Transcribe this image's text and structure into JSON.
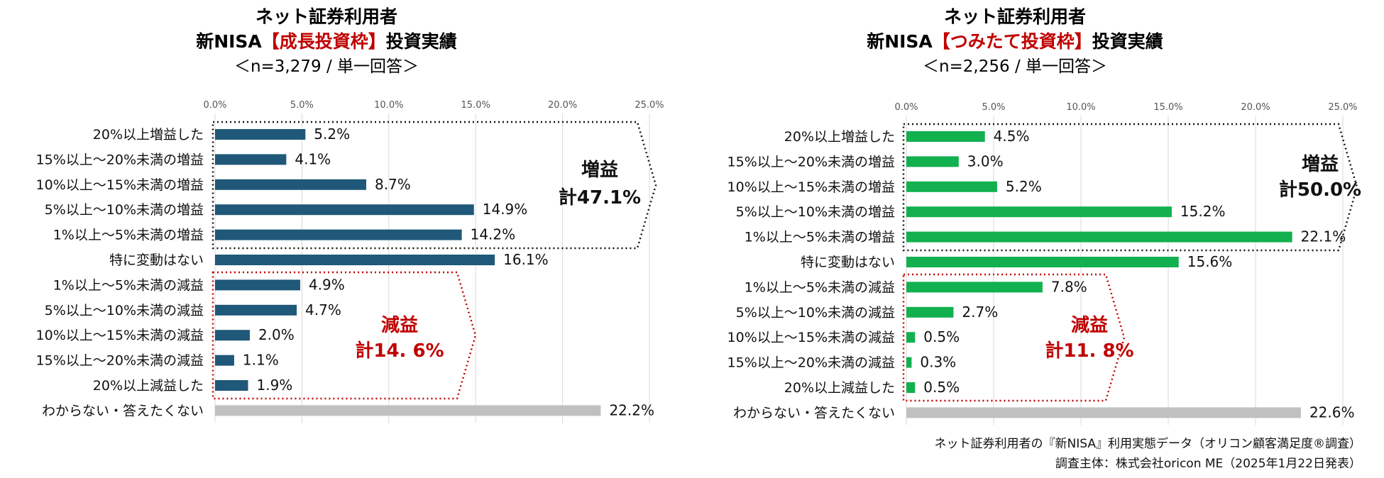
{
  "chart_data": [
    {
      "type": "bar",
      "orientation": "horizontal",
      "title_line1": "ネット証券利用者",
      "title_line2_prefix": "新NISA",
      "title_line2_highlight": "【成長投資枠】",
      "title_line2_suffix": "投資実績",
      "title_line3": "＜n=3,279 / 単一回答＞",
      "xlim": [
        0,
        25
      ],
      "ticks": [
        "0.0%",
        "5.0%",
        "10.0%",
        "15.0%",
        "20.0%",
        "25.0%"
      ],
      "grid": true,
      "bar_color": "#1f5878",
      "other_color": "#c0c0c0",
      "categories": [
        "20%以上増益した",
        "15%以上～20%未満の増益",
        "10%以上～15%未満の増益",
        "5%以上～10%未満の増益",
        "1%以上～5%未満の増益",
        "特に変動はない",
        "1%以上～5%未満の減益",
        "5%以上～10%未満の減益",
        "10%以上～15%未満の減益",
        "15%以上～20%未満の減益",
        "20%以上減益した",
        "わからない・答えたくない"
      ],
      "values": [
        5.2,
        4.1,
        8.7,
        14.9,
        14.2,
        16.1,
        4.9,
        4.7,
        2.0,
        1.1,
        1.9,
        22.2
      ],
      "value_labels": [
        "5.2%",
        "4.1%",
        "8.7%",
        "14.9%",
        "14.2%",
        "16.1%",
        "4.9%",
        "4.7%",
        "2.0%",
        "1.1%",
        "1.9%",
        "22.2%"
      ],
      "gain_label": "増益",
      "gain_total": "計47.1%",
      "loss_label": "減益",
      "loss_total": "計14. 6%"
    },
    {
      "type": "bar",
      "orientation": "horizontal",
      "title_line1": "ネット証券利用者",
      "title_line2_prefix": "新NISA",
      "title_line2_highlight": "【つみたて投資枠】",
      "title_line2_suffix": "投資実績",
      "title_line3": "＜n=2,256 / 単一回答＞",
      "xlim": [
        0,
        25
      ],
      "ticks": [
        "0.0%",
        "5.0%",
        "10.0%",
        "15.0%",
        "20.0%",
        "25.0%"
      ],
      "grid": true,
      "bar_color": "#12b04f",
      "other_color": "#c0c0c0",
      "categories": [
        "20%以上増益した",
        "15%以上～20%未満の増益",
        "10%以上～15%未満の増益",
        "5%以上～10%未満の増益",
        "1%以上～5%未満の増益",
        "特に変動はない",
        "1%以上～5%未満の減益",
        "5%以上～10%未満の減益",
        "10%以上～15%未満の減益",
        "15%以上～20%未満の減益",
        "20%以上減益した",
        "わからない・答えたくない"
      ],
      "values": [
        4.5,
        3.0,
        5.2,
        15.2,
        22.1,
        15.6,
        7.8,
        2.7,
        0.5,
        0.3,
        0.5,
        22.6
      ],
      "value_labels": [
        "4.5%",
        "3.0%",
        "5.2%",
        "15.2%",
        "22.1%",
        "15.6%",
        "7.8%",
        "2.7%",
        "0.5%",
        "0.3%",
        "0.5%",
        "22.6%"
      ],
      "gain_label": "増益",
      "gain_total": "計50.0%",
      "loss_label": "減益",
      "loss_total": "計11. 8%"
    }
  ],
  "source": {
    "line1": "ネット証券利用者の『新NISA』利用実態データ（オリコン顧客満足度®調査）",
    "line2": "調査主体：株式会社oricon ME（2025年1月22日発表）"
  },
  "colors": {
    "accent_red": "#c00000",
    "grid": "#d9d9d9"
  }
}
